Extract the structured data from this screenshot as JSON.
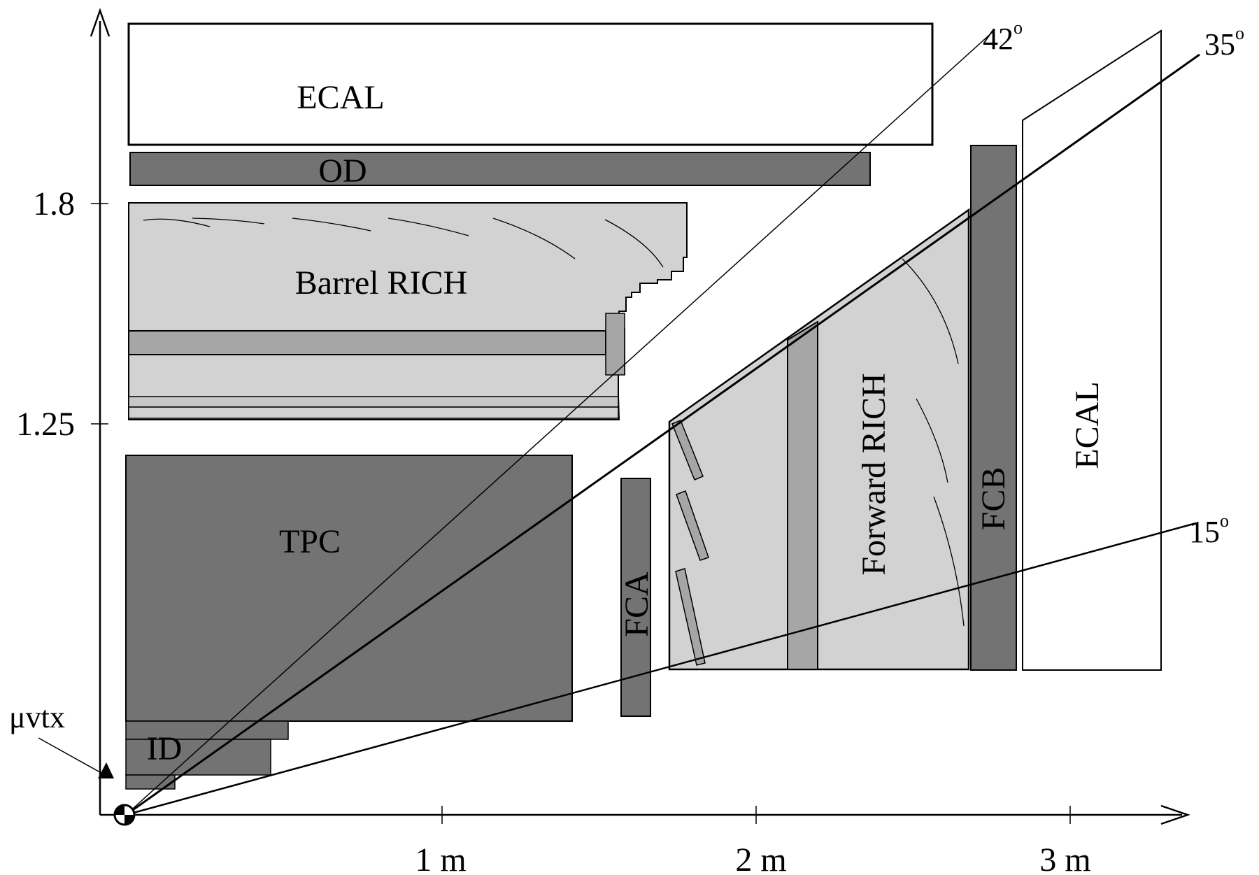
{
  "labels": {
    "ecal_top": "ECAL",
    "od": "OD",
    "barrel_rich": "Barrel RICH",
    "tpc": "TPC",
    "id": "ID",
    "fca": "FCA",
    "forward_rich": "Forward RICH",
    "fcb": "FCB",
    "ecal_side": "ECAL",
    "muvtx": "μvtx"
  },
  "angles": {
    "a42": "42",
    "a35": "35",
    "a15": "15",
    "degree_mark": "o"
  },
  "axes": {
    "x_ticks": [
      "1 m",
      "2 m",
      "3 m"
    ],
    "y_ticks": [
      "1.8",
      "1.25"
    ]
  },
  "colors": {
    "dark_gray": "#737373",
    "mid_gray": "#a6a6a6",
    "light_gray": "#d2d2d2",
    "stroke": "#000000",
    "white": "#ffffff"
  }
}
